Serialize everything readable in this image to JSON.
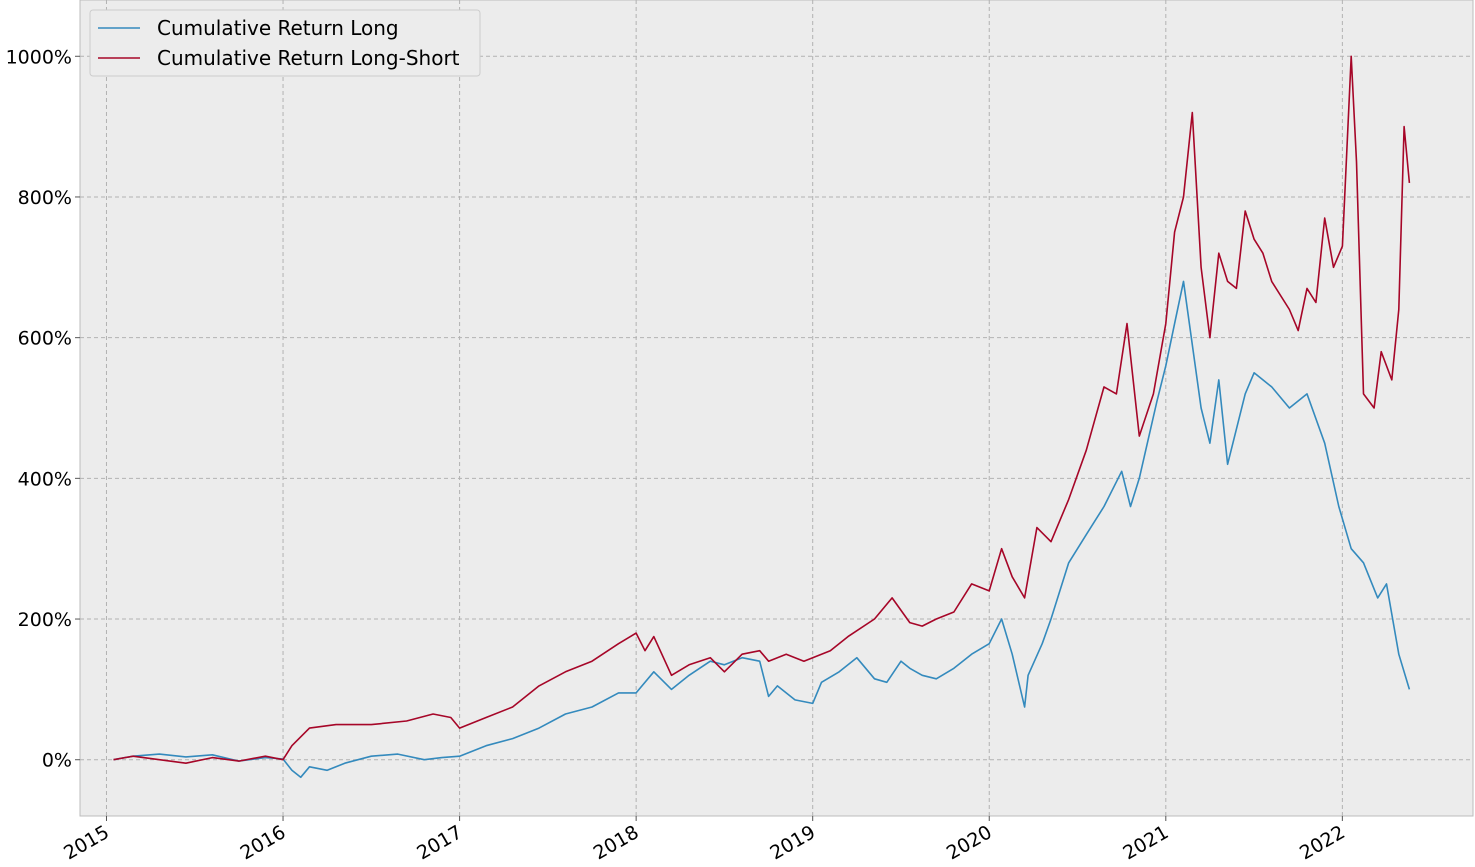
{
  "chart_data": {
    "type": "line",
    "title": "",
    "xlabel": "",
    "ylabel": "",
    "grid": true,
    "legend_position": "top-left",
    "xlim": [
      2014.85,
      2022.74
    ],
    "ylim": [
      -80,
      1080
    ],
    "x_ticks": [
      2015,
      2016,
      2017,
      2018,
      2019,
      2020,
      2021,
      2022
    ],
    "x_tick_labels": [
      "2015",
      "2016",
      "2017",
      "2018",
      "2019",
      "2020",
      "2021",
      "2022"
    ],
    "y_ticks": [
      0,
      200,
      400,
      600,
      800,
      1000
    ],
    "y_tick_labels": [
      "0%",
      "200%",
      "400%",
      "600%",
      "800%",
      "1000%"
    ],
    "background_color": "#ececec",
    "series": [
      {
        "name": "Cumulative Return Long",
        "color": "#348abd",
        "x": [
          2015.04,
          2015.15,
          2015.3,
          2015.45,
          2015.6,
          2015.75,
          2015.9,
          2016.0,
          2016.05,
          2016.1,
          2016.15,
          2016.25,
          2016.35,
          2016.5,
          2016.65,
          2016.8,
          2016.9,
          2017.0,
          2017.15,
          2017.3,
          2017.45,
          2017.6,
          2017.75,
          2017.9,
          2018.0,
          2018.1,
          2018.2,
          2018.3,
          2018.42,
          2018.5,
          2018.6,
          2018.7,
          2018.75,
          2018.8,
          2018.9,
          2019.0,
          2019.05,
          2019.15,
          2019.25,
          2019.35,
          2019.42,
          2019.5,
          2019.55,
          2019.62,
          2019.7,
          2019.8,
          2019.9,
          2020.0,
          2020.07,
          2020.13,
          2020.2,
          2020.22,
          2020.3,
          2020.35,
          2020.45,
          2020.55,
          2020.65,
          2020.75,
          2020.8,
          2020.85,
          2020.95,
          2021.0,
          2021.05,
          2021.1,
          2021.2,
          2021.25,
          2021.3,
          2021.35,
          2021.45,
          2021.5,
          2021.6,
          2021.7,
          2021.8,
          2021.9,
          2021.98,
          2022.05,
          2022.12,
          2022.2,
          2022.25,
          2022.32,
          2022.38
        ],
        "values": [
          0,
          5,
          8,
          4,
          7,
          -2,
          3,
          1,
          -15,
          -25,
          -10,
          -15,
          -5,
          5,
          8,
          0,
          3,
          5,
          20,
          30,
          45,
          65,
          75,
          95,
          95,
          125,
          100,
          120,
          140,
          135,
          145,
          140,
          90,
          105,
          85,
          80,
          110,
          125,
          145,
          115,
          110,
          140,
          130,
          120,
          115,
          130,
          150,
          165,
          200,
          150,
          75,
          120,
          165,
          200,
          280,
          320,
          360,
          410,
          360,
          400,
          510,
          560,
          620,
          680,
          500,
          450,
          540,
          420,
          520,
          550,
          530,
          500,
          520,
          450,
          360,
          300,
          280,
          230,
          250,
          150,
          100
        ]
      },
      {
        "name": "Cumulative Return Long-Short",
        "color": "#a60628",
        "x": [
          2015.04,
          2015.15,
          2015.3,
          2015.45,
          2015.6,
          2015.75,
          2015.9,
          2016.0,
          2016.05,
          2016.15,
          2016.3,
          2016.5,
          2016.7,
          2016.85,
          2016.95,
          2017.0,
          2017.15,
          2017.3,
          2017.45,
          2017.6,
          2017.75,
          2017.9,
          2018.0,
          2018.05,
          2018.1,
          2018.2,
          2018.3,
          2018.42,
          2018.5,
          2018.6,
          2018.7,
          2018.75,
          2018.85,
          2018.95,
          2019.0,
          2019.1,
          2019.2,
          2019.35,
          2019.45,
          2019.55,
          2019.62,
          2019.7,
          2019.8,
          2019.9,
          2020.0,
          2020.07,
          2020.13,
          2020.2,
          2020.27,
          2020.35,
          2020.45,
          2020.55,
          2020.65,
          2020.72,
          2020.78,
          2020.85,
          2020.93,
          2021.0,
          2021.05,
          2021.1,
          2021.15,
          2021.2,
          2021.25,
          2021.3,
          2021.35,
          2021.4,
          2021.45,
          2021.5,
          2021.55,
          2021.6,
          2021.7,
          2021.75,
          2021.8,
          2021.85,
          2021.9,
          2021.95,
          2022.0,
          2022.05,
          2022.08,
          2022.12,
          2022.18,
          2022.22,
          2022.28,
          2022.32,
          2022.35,
          2022.38
        ],
        "values": [
          0,
          5,
          0,
          -5,
          3,
          -2,
          5,
          0,
          20,
          45,
          50,
          50,
          55,
          65,
          60,
          45,
          60,
          75,
          105,
          125,
          140,
          165,
          180,
          155,
          175,
          120,
          135,
          145,
          125,
          150,
          155,
          140,
          150,
          140,
          145,
          155,
          175,
          200,
          230,
          195,
          190,
          200,
          210,
          250,
          240,
          300,
          260,
          230,
          330,
          310,
          370,
          440,
          530,
          520,
          620,
          460,
          520,
          620,
          750,
          800,
          920,
          700,
          600,
          720,
          680,
          670,
          780,
          740,
          720,
          680,
          640,
          610,
          670,
          650,
          770,
          700,
          730,
          1000,
          850,
          520,
          500,
          580,
          540,
          640,
          900,
          820
        ]
      }
    ]
  }
}
